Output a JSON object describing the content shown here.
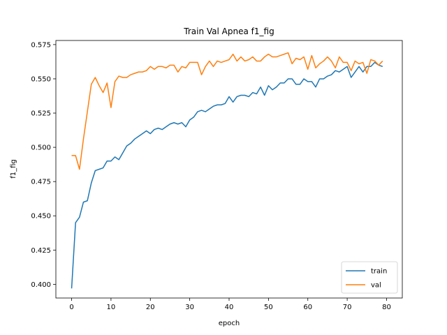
{
  "chart_data": {
    "type": "line",
    "title": "Train Val Apnea f1_fig",
    "xlabel": "epoch",
    "ylabel": "f1_fig",
    "xlim": [
      -4,
      84
    ],
    "ylim": [
      0.39,
      0.578
    ],
    "x_ticks": [
      0,
      10,
      20,
      30,
      40,
      50,
      60,
      70,
      80
    ],
    "y_ticks": [
      0.4,
      0.425,
      0.45,
      0.475,
      0.5,
      0.525,
      0.55,
      0.575
    ],
    "y_tick_labels": [
      "0.400",
      "0.425",
      "0.450",
      "0.475",
      "0.500",
      "0.525",
      "0.550",
      "0.575"
    ],
    "legend_position": "lower right",
    "grid": false,
    "x": [
      0,
      1,
      2,
      3,
      4,
      5,
      6,
      7,
      8,
      9,
      10,
      11,
      12,
      13,
      14,
      15,
      16,
      17,
      18,
      19,
      20,
      21,
      22,
      23,
      24,
      25,
      26,
      27,
      28,
      29,
      30,
      31,
      32,
      33,
      34,
      35,
      36,
      37,
      38,
      39,
      40,
      41,
      42,
      43,
      44,
      45,
      46,
      47,
      48,
      49,
      50,
      51,
      52,
      53,
      54,
      55,
      56,
      57,
      58,
      59,
      60,
      61,
      62,
      63,
      64,
      65,
      66,
      67,
      68,
      69,
      70,
      71,
      72,
      73,
      74,
      75,
      76,
      77,
      78,
      79
    ],
    "series": [
      {
        "name": "train",
        "color": "#1f77b4",
        "values": [
          0.397,
          0.445,
          0.449,
          0.46,
          0.461,
          0.474,
          0.483,
          0.484,
          0.485,
          0.49,
          0.49,
          0.493,
          0.491,
          0.496,
          0.501,
          0.503,
          0.506,
          0.508,
          0.51,
          0.512,
          0.51,
          0.513,
          0.514,
          0.513,
          0.515,
          0.517,
          0.518,
          0.517,
          0.518,
          0.515,
          0.52,
          0.522,
          0.526,
          0.527,
          0.526,
          0.528,
          0.53,
          0.531,
          0.531,
          0.532,
          0.537,
          0.533,
          0.537,
          0.538,
          0.538,
          0.537,
          0.54,
          0.539,
          0.544,
          0.538,
          0.545,
          0.542,
          0.544,
          0.547,
          0.547,
          0.55,
          0.55,
          0.546,
          0.546,
          0.55,
          0.548,
          0.548,
          0.544,
          0.55,
          0.55,
          0.552,
          0.553,
          0.556,
          0.555,
          0.557,
          0.559,
          0.551,
          0.555,
          0.559,
          0.555,
          0.559,
          0.559,
          0.562,
          0.56,
          0.559
        ]
      },
      {
        "name": "val",
        "color": "#ff7f0e",
        "values": [
          0.494,
          0.494,
          0.484,
          0.506,
          0.526,
          0.546,
          0.551,
          0.545,
          0.54,
          0.547,
          0.529,
          0.548,
          0.552,
          0.551,
          0.551,
          0.553,
          0.554,
          0.555,
          0.555,
          0.556,
          0.559,
          0.557,
          0.559,
          0.559,
          0.558,
          0.56,
          0.56,
          0.555,
          0.559,
          0.558,
          0.562,
          0.562,
          0.562,
          0.553,
          0.559,
          0.563,
          0.559,
          0.563,
          0.562,
          0.563,
          0.564,
          0.568,
          0.563,
          0.566,
          0.563,
          0.564,
          0.566,
          0.563,
          0.563,
          0.566,
          0.568,
          0.566,
          0.566,
          0.567,
          0.568,
          0.569,
          0.561,
          0.565,
          0.564,
          0.566,
          0.557,
          0.567,
          0.558,
          0.561,
          0.563,
          0.566,
          0.563,
          0.558,
          0.566,
          0.562,
          0.562,
          0.556,
          0.563,
          0.561,
          0.562,
          0.554,
          0.564,
          0.563,
          0.56,
          0.563
        ]
      }
    ]
  }
}
